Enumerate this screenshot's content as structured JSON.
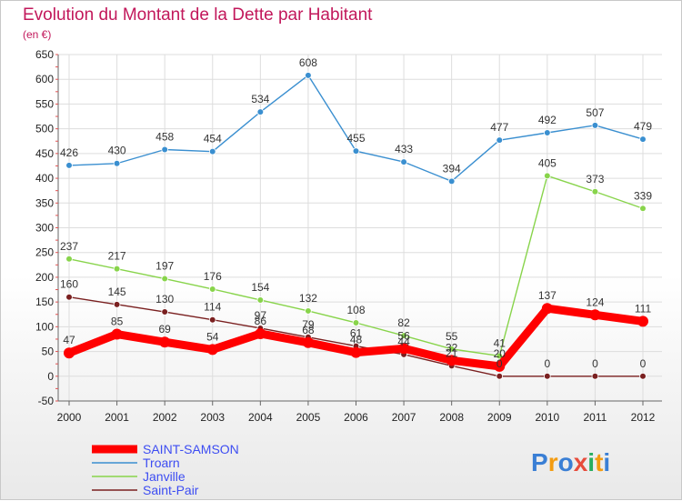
{
  "chart_data": {
    "type": "line",
    "title": "Evolution du Montant de la Dette par Habitant",
    "subtitle": "(en €)",
    "x": [
      "2000",
      "2001",
      "2002",
      "2003",
      "2004",
      "2005",
      "2006",
      "2007",
      "2008",
      "2009",
      "2010",
      "2011",
      "2012"
    ],
    "ylim": [
      -50,
      650
    ],
    "yticks": [
      -50,
      0,
      50,
      100,
      150,
      200,
      250,
      300,
      350,
      400,
      450,
      500,
      550,
      600,
      650
    ],
    "grid": true,
    "legend_position": "bottom-left",
    "series": [
      {
        "name": "SAINT-SAMSON",
        "color": "#ff0000",
        "values": [
          47,
          85,
          69,
          54,
          86,
          68,
          48,
          56,
          32,
          20,
          137,
          124,
          111
        ]
      },
      {
        "name": "Troarn",
        "color": "#3a8fd0",
        "values": [
          426,
          430,
          458,
          454,
          534,
          608,
          455,
          433,
          394,
          477,
          492,
          507,
          479
        ]
      },
      {
        "name": "Janville",
        "color": "#88d44b",
        "values": [
          237,
          217,
          197,
          176,
          154,
          132,
          108,
          82,
          55,
          41,
          405,
          373,
          339
        ]
      },
      {
        "name": "Saint-Pair",
        "color": "#7a2020",
        "values": [
          160,
          145,
          130,
          114,
          97,
          79,
          61,
          44,
          21,
          0,
          0,
          0,
          0
        ]
      }
    ],
    "data_labels": {
      "SAINT-SAMSON": [
        "47",
        "85",
        "69",
        "54",
        "86",
        "68",
        "48",
        "56",
        "32",
        "20",
        "137",
        "124",
        "111"
      ],
      "Troarn": [
        "426",
        "430",
        "458",
        "454",
        "534",
        "608",
        "455",
        "433",
        "394",
        "477",
        "492",
        "507",
        "479"
      ],
      "Janville": [
        "237",
        "217",
        "197",
        "176",
        "154",
        "132",
        "108",
        "82",
        "55",
        "41",
        "405",
        "373",
        "339"
      ],
      "Saint-Pair": [
        "160",
        "145",
        "130",
        "114",
        "97",
        "79",
        "61",
        "44",
        "21",
        "0",
        "0",
        "0",
        "0"
      ]
    }
  },
  "logo": {
    "text": "Proxiti",
    "letters": [
      "P",
      "r",
      "o",
      "x",
      "i",
      "t",
      "i"
    ],
    "colors": [
      "#3a7fd5",
      "#f39c12",
      "#3a7fd5",
      "#e74c3c",
      "#27ae60",
      "#f39c12",
      "#3a7fd5"
    ]
  }
}
